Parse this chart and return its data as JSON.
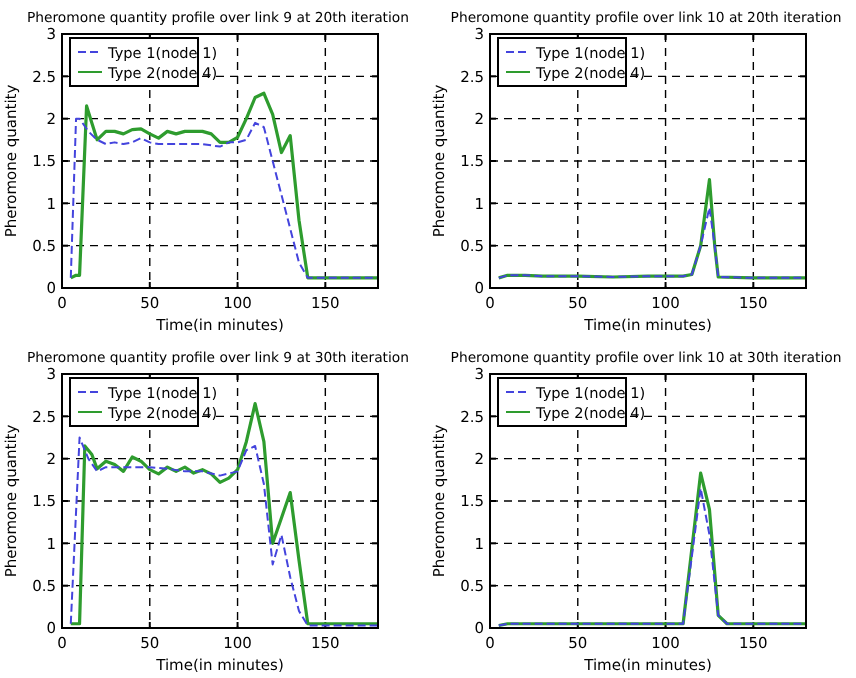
{
  "chart_data": [
    {
      "type": "line",
      "title": "Pheromone quantity profile over link 9 at 20th iteration",
      "xlabel": "Time(in minutes)",
      "ylabel": "Pheromone quantity",
      "xlim": [
        0,
        180
      ],
      "ylim": [
        0,
        3
      ],
      "xticks": [
        0,
        50,
        100,
        150
      ],
      "yticks": [
        0,
        0.5,
        1,
        1.5,
        2,
        2.5,
        3
      ],
      "grid": true,
      "legend": "top left",
      "marker": "none",
      "series": [
        {
          "name": "Type 1(node 1)",
          "color": "#4444dd",
          "line_style": "dashed",
          "x": [
            5,
            8,
            10,
            15,
            20,
            25,
            30,
            35,
            40,
            45,
            50,
            55,
            60,
            70,
            80,
            90,
            95,
            100,
            105,
            110,
            115,
            120,
            125,
            130,
            135,
            140,
            150,
            180
          ],
          "values": [
            0.12,
            2.0,
            2.0,
            1.85,
            1.75,
            1.7,
            1.72,
            1.7,
            1.72,
            1.77,
            1.72,
            1.7,
            1.7,
            1.7,
            1.7,
            1.67,
            1.72,
            1.72,
            1.75,
            1.95,
            1.9,
            1.5,
            1.1,
            0.7,
            0.3,
            0.12,
            0.12,
            0.12
          ]
        },
        {
          "name": "Type 2(node 4)",
          "color": "#2e9c2e",
          "line_style": "solid",
          "x": [
            5,
            8,
            10,
            14,
            17,
            20,
            25,
            30,
            35,
            40,
            45,
            50,
            55,
            60,
            65,
            70,
            80,
            85,
            90,
            95,
            100,
            105,
            110,
            115,
            120,
            125,
            130,
            135,
            140,
            150,
            180
          ],
          "values": [
            0.12,
            0.15,
            0.15,
            2.15,
            1.95,
            1.75,
            1.85,
            1.85,
            1.82,
            1.87,
            1.88,
            1.82,
            1.77,
            1.85,
            1.82,
            1.85,
            1.85,
            1.82,
            1.72,
            1.72,
            1.78,
            2.0,
            2.25,
            2.3,
            2.05,
            1.6,
            1.8,
            0.8,
            0.12,
            0.12,
            0.12
          ]
        }
      ]
    },
    {
      "type": "line",
      "title": "Pheromone quantity profile over link 10 at 20th iteration",
      "xlabel": "Time(in minutes)",
      "ylabel": "Pheromone quantity",
      "xlim": [
        0,
        180
      ],
      "ylim": [
        0,
        3
      ],
      "xticks": [
        0,
        50,
        100,
        150
      ],
      "yticks": [
        0,
        0.5,
        1,
        1.5,
        2,
        2.5,
        3
      ],
      "grid": true,
      "legend": "top left",
      "marker": "none",
      "series": [
        {
          "name": "Type 1(node 1)",
          "color": "#4444dd",
          "line_style": "dashed",
          "x": [
            5,
            10,
            20,
            30,
            50,
            70,
            90,
            110,
            115,
            120,
            125,
            128,
            130,
            150,
            180
          ],
          "values": [
            0.12,
            0.15,
            0.15,
            0.14,
            0.14,
            0.13,
            0.14,
            0.14,
            0.16,
            0.5,
            0.95,
            0.5,
            0.13,
            0.12,
            0.12
          ]
        },
        {
          "name": "Type 2(node 4)",
          "color": "#2e9c2e",
          "line_style": "solid",
          "x": [
            5,
            10,
            20,
            30,
            50,
            70,
            90,
            110,
            115,
            120,
            125,
            128,
            130,
            150,
            180
          ],
          "values": [
            0.12,
            0.15,
            0.15,
            0.14,
            0.14,
            0.13,
            0.14,
            0.14,
            0.16,
            0.5,
            1.28,
            0.5,
            0.13,
            0.12,
            0.12
          ]
        }
      ]
    },
    {
      "type": "line",
      "title": "Pheromone quantity profile over link 9 at 30th iteration",
      "xlabel": "Time(in minutes)",
      "ylabel": "Pheromone quantity",
      "xlim": [
        0,
        180
      ],
      "ylim": [
        0,
        3
      ],
      "xticks": [
        0,
        50,
        100,
        150
      ],
      "yticks": [
        0,
        0.5,
        1,
        1.5,
        2,
        2.5,
        3
      ],
      "grid": true,
      "legend": "top left",
      "marker": "none",
      "series": [
        {
          "name": "Type 1(node 1)",
          "color": "#4444dd",
          "line_style": "dashed",
          "x": [
            5,
            10,
            15,
            20,
            25,
            30,
            40,
            50,
            60,
            70,
            80,
            90,
            100,
            105,
            110,
            115,
            120,
            125,
            130,
            135,
            140,
            180
          ],
          "values": [
            0.05,
            2.25,
            2.0,
            1.85,
            1.9,
            1.9,
            1.9,
            1.9,
            1.88,
            1.85,
            1.85,
            1.8,
            1.85,
            2.1,
            2.15,
            1.7,
            0.75,
            1.1,
            0.6,
            0.2,
            0.03,
            0.03
          ]
        },
        {
          "name": "Type 2(node 4)",
          "color": "#2e9c2e",
          "line_style": "solid",
          "x": [
            5,
            10,
            13,
            17,
            20,
            25,
            30,
            35,
            40,
            45,
            50,
            55,
            60,
            65,
            70,
            75,
            80,
            85,
            90,
            95,
            100,
            105,
            110,
            115,
            120,
            125,
            130,
            135,
            140,
            180
          ],
          "values": [
            0.05,
            0.05,
            2.15,
            2.05,
            1.88,
            1.97,
            1.93,
            1.85,
            2.02,
            1.97,
            1.87,
            1.82,
            1.9,
            1.85,
            1.9,
            1.83,
            1.87,
            1.82,
            1.72,
            1.77,
            1.87,
            2.2,
            2.65,
            2.2,
            1.0,
            1.3,
            1.6,
            0.8,
            0.05,
            0.05
          ]
        }
      ]
    },
    {
      "type": "line",
      "title": "Pheromone quantity profile over link 10 at 30th iteration",
      "xlabel": "Time(in minutes)",
      "ylabel": "Pheromone quantity",
      "xlim": [
        0,
        180
      ],
      "ylim": [
        0,
        3
      ],
      "xticks": [
        0,
        50,
        100,
        150
      ],
      "yticks": [
        0,
        0.5,
        1,
        1.5,
        2,
        2.5,
        3
      ],
      "grid": true,
      "legend": "top left",
      "marker": "none",
      "series": [
        {
          "name": "Type 1(node 1)",
          "color": "#4444dd",
          "line_style": "dashed",
          "x": [
            5,
            10,
            110,
            120,
            125,
            130,
            135,
            180
          ],
          "values": [
            0.03,
            0.05,
            0.05,
            1.65,
            1.1,
            0.15,
            0.05,
            0.05
          ]
        },
        {
          "name": "Type 2(node 4)",
          "color": "#2e9c2e",
          "line_style": "solid",
          "x": [
            5,
            10,
            110,
            120,
            125,
            130,
            135,
            180
          ],
          "values": [
            0.03,
            0.05,
            0.05,
            1.83,
            1.4,
            0.15,
            0.05,
            0.05
          ]
        }
      ]
    }
  ]
}
